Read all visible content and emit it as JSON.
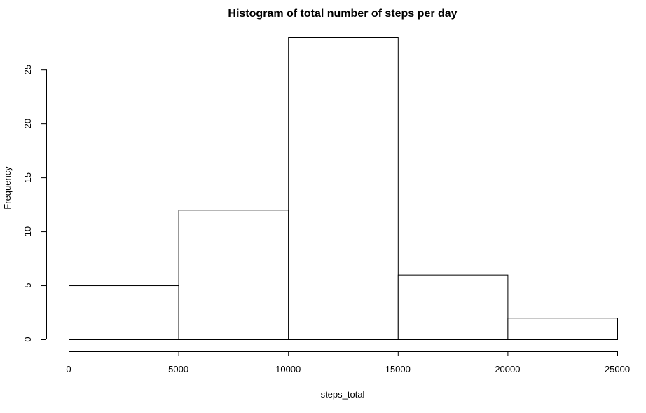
{
  "chart_data": {
    "type": "bar",
    "subtype": "histogram",
    "title": "Histogram of total number of steps per day",
    "xlabel": "steps_total",
    "ylabel": "Frequency",
    "bins": [
      {
        "from": 0,
        "to": 5000,
        "count": 5
      },
      {
        "from": 5000,
        "to": 10000,
        "count": 12
      },
      {
        "from": 10000,
        "to": 15000,
        "count": 28
      },
      {
        "from": 15000,
        "to": 20000,
        "count": 6
      },
      {
        "from": 20000,
        "to": 25000,
        "count": 2
      }
    ],
    "xlim": [
      0,
      25000
    ],
    "ylim": [
      0,
      28
    ],
    "x_ticks": [
      0,
      5000,
      10000,
      15000,
      20000,
      25000
    ],
    "y_ticks": [
      0,
      5,
      10,
      15,
      20,
      25
    ],
    "grid": false,
    "bar_fill": "#ffffff",
    "bar_stroke": "#000000"
  }
}
